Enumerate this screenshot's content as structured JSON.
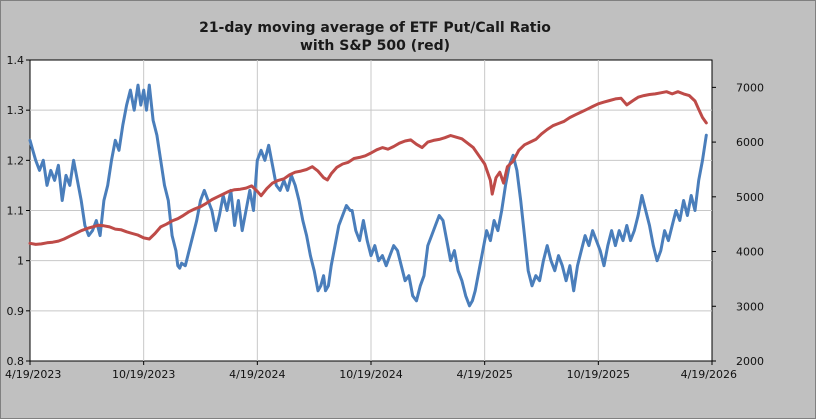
{
  "chart_data": {
    "type": "line",
    "title": "21-day moving average of ETF Put/Call Ratio",
    "subtitle": "with S&P 500 (red)",
    "xlabel": "",
    "ylabel_left": "",
    "ylabel_right": "",
    "grid": true,
    "legend": "none",
    "x_ticks": [
      "4/19/2023",
      "10/19/2023",
      "4/19/2024",
      "10/19/2024",
      "4/19/2025",
      "10/19/2025",
      "4/19/2026"
    ],
    "x_range_months": [
      0,
      36
    ],
    "y_left": {
      "range": [
        0.8,
        1.4
      ],
      "ticks": [
        0.8,
        0.9,
        1,
        1.1,
        1.2,
        1.3,
        1.4
      ],
      "tick_labels": [
        "0.8",
        "0.9",
        "1",
        "1.1",
        "1.2",
        "1.3",
        "1.4"
      ]
    },
    "y_right": {
      "range": [
        2000,
        7500
      ],
      "ticks": [
        2000,
        3000,
        4000,
        5000,
        6000,
        7000
      ],
      "tick_labels": [
        "2000",
        "3000",
        "4000",
        "5000",
        "6000",
        "7000"
      ]
    },
    "series": [
      {
        "name": "ETF Put/Call Ratio (21-day MA)",
        "axis": "left",
        "color": "#4a7ebb",
        "points": [
          [
            0.0,
            1.24
          ],
          [
            0.15,
            1.22
          ],
          [
            0.3,
            1.2
          ],
          [
            0.5,
            1.18
          ],
          [
            0.7,
            1.2
          ],
          [
            0.9,
            1.15
          ],
          [
            1.1,
            1.18
          ],
          [
            1.3,
            1.16
          ],
          [
            1.5,
            1.19
          ],
          [
            1.7,
            1.12
          ],
          [
            1.9,
            1.17
          ],
          [
            2.1,
            1.15
          ],
          [
            2.3,
            1.2
          ],
          [
            2.5,
            1.16
          ],
          [
            2.7,
            1.12
          ],
          [
            2.9,
            1.07
          ],
          [
            3.1,
            1.05
          ],
          [
            3.3,
            1.06
          ],
          [
            3.5,
            1.08
          ],
          [
            3.7,
            1.05
          ],
          [
            3.9,
            1.12
          ],
          [
            4.1,
            1.15
          ],
          [
            4.3,
            1.2
          ],
          [
            4.5,
            1.24
          ],
          [
            4.7,
            1.22
          ],
          [
            4.9,
            1.27
          ],
          [
            5.1,
            1.31
          ],
          [
            5.3,
            1.34
          ],
          [
            5.5,
            1.3
          ],
          [
            5.7,
            1.35
          ],
          [
            5.85,
            1.31
          ],
          [
            6.0,
            1.34
          ],
          [
            6.15,
            1.3
          ],
          [
            6.3,
            1.35
          ],
          [
            6.5,
            1.28
          ],
          [
            6.7,
            1.25
          ],
          [
            6.9,
            1.2
          ],
          [
            7.1,
            1.15
          ],
          [
            7.3,
            1.12
          ],
          [
            7.5,
            1.05
          ],
          [
            7.7,
            1.02
          ],
          [
            7.8,
            0.99
          ],
          [
            7.9,
            0.985
          ],
          [
            8.0,
            0.995
          ],
          [
            8.2,
            0.99
          ],
          [
            8.4,
            1.02
          ],
          [
            8.6,
            1.05
          ],
          [
            8.8,
            1.08
          ],
          [
            9.0,
            1.12
          ],
          [
            9.2,
            1.14
          ],
          [
            9.4,
            1.12
          ],
          [
            9.6,
            1.1
          ],
          [
            9.8,
            1.06
          ],
          [
            10.0,
            1.09
          ],
          [
            10.2,
            1.13
          ],
          [
            10.4,
            1.1
          ],
          [
            10.6,
            1.14
          ],
          [
            10.8,
            1.07
          ],
          [
            11.0,
            1.12
          ],
          [
            11.2,
            1.06
          ],
          [
            11.4,
            1.1
          ],
          [
            11.6,
            1.14
          ],
          [
            11.8,
            1.1
          ],
          [
            12.0,
            1.2
          ],
          [
            12.2,
            1.22
          ],
          [
            12.4,
            1.2
          ],
          [
            12.6,
            1.23
          ],
          [
            12.8,
            1.19
          ],
          [
            13.0,
            1.15
          ],
          [
            13.2,
            1.14
          ],
          [
            13.4,
            1.16
          ],
          [
            13.6,
            1.14
          ],
          [
            13.8,
            1.17
          ],
          [
            14.0,
            1.15
          ],
          [
            14.2,
            1.12
          ],
          [
            14.4,
            1.08
          ],
          [
            14.6,
            1.05
          ],
          [
            14.8,
            1.01
          ],
          [
            15.0,
            0.98
          ],
          [
            15.1,
            0.96
          ],
          [
            15.2,
            0.94
          ],
          [
            15.35,
            0.95
          ],
          [
            15.5,
            0.97
          ],
          [
            15.6,
            0.94
          ],
          [
            15.75,
            0.95
          ],
          [
            15.9,
            0.99
          ],
          [
            16.1,
            1.03
          ],
          [
            16.3,
            1.07
          ],
          [
            16.5,
            1.09
          ],
          [
            16.7,
            1.11
          ],
          [
            16.9,
            1.1
          ],
          [
            17.0,
            1.1
          ],
          [
            17.2,
            1.06
          ],
          [
            17.4,
            1.04
          ],
          [
            17.6,
            1.08
          ],
          [
            17.8,
            1.04
          ],
          [
            18.0,
            1.01
          ],
          [
            18.2,
            1.03
          ],
          [
            18.4,
            1.0
          ],
          [
            18.6,
            1.01
          ],
          [
            18.8,
            0.99
          ],
          [
            19.0,
            1.01
          ],
          [
            19.2,
            1.03
          ],
          [
            19.4,
            1.02
          ],
          [
            19.6,
            0.99
          ],
          [
            19.8,
            0.96
          ],
          [
            20.0,
            0.97
          ],
          [
            20.2,
            0.93
          ],
          [
            20.4,
            0.92
          ],
          [
            20.6,
            0.95
          ],
          [
            20.8,
            0.97
          ],
          [
            21.0,
            1.03
          ],
          [
            21.2,
            1.05
          ],
          [
            21.4,
            1.07
          ],
          [
            21.6,
            1.09
          ],
          [
            21.8,
            1.08
          ],
          [
            22.0,
            1.04
          ],
          [
            22.2,
            1.0
          ],
          [
            22.4,
            1.02
          ],
          [
            22.6,
            0.98
          ],
          [
            22.8,
            0.96
          ],
          [
            23.0,
            0.93
          ],
          [
            23.2,
            0.91
          ],
          [
            23.35,
            0.92
          ],
          [
            23.5,
            0.94
          ],
          [
            23.7,
            0.98
          ],
          [
            23.9,
            1.02
          ],
          [
            24.1,
            1.06
          ],
          [
            24.3,
            1.04
          ],
          [
            24.5,
            1.08
          ],
          [
            24.7,
            1.06
          ],
          [
            24.9,
            1.1
          ],
          [
            25.1,
            1.15
          ],
          [
            25.3,
            1.19
          ],
          [
            25.5,
            1.21
          ],
          [
            25.7,
            1.18
          ],
          [
            25.9,
            1.12
          ],
          [
            26.1,
            1.05
          ],
          [
            26.3,
            0.98
          ],
          [
            26.5,
            0.95
          ],
          [
            26.7,
            0.97
          ],
          [
            26.9,
            0.96
          ],
          [
            27.1,
            1.0
          ],
          [
            27.3,
            1.03
          ],
          [
            27.5,
            1.0
          ],
          [
            27.7,
            0.98
          ],
          [
            27.9,
            1.01
          ],
          [
            28.1,
            0.99
          ],
          [
            28.3,
            0.96
          ],
          [
            28.5,
            0.99
          ],
          [
            28.7,
            0.94
          ],
          [
            28.9,
            0.99
          ],
          [
            29.1,
            1.02
          ],
          [
            29.3,
            1.05
          ],
          [
            29.5,
            1.03
          ],
          [
            29.7,
            1.06
          ],
          [
            29.9,
            1.04
          ],
          [
            30.1,
            1.02
          ],
          [
            30.3,
            0.99
          ],
          [
            30.5,
            1.03
          ],
          [
            30.7,
            1.06
          ],
          [
            30.9,
            1.03
          ],
          [
            31.1,
            1.06
          ],
          [
            31.3,
            1.04
          ],
          [
            31.5,
            1.07
          ],
          [
            31.7,
            1.04
          ],
          [
            31.9,
            1.06
          ],
          [
            32.1,
            1.09
          ],
          [
            32.3,
            1.13
          ],
          [
            32.5,
            1.1
          ],
          [
            32.7,
            1.07
          ],
          [
            32.9,
            1.03
          ],
          [
            33.1,
            1.0
          ],
          [
            33.3,
            1.02
          ],
          [
            33.5,
            1.06
          ],
          [
            33.7,
            1.04
          ],
          [
            33.9,
            1.07
          ],
          [
            34.1,
            1.1
          ],
          [
            34.3,
            1.08
          ],
          [
            34.5,
            1.12
          ],
          [
            34.7,
            1.09
          ],
          [
            34.9,
            1.13
          ],
          [
            35.1,
            1.1
          ],
          [
            35.3,
            1.16
          ],
          [
            35.5,
            1.2
          ],
          [
            35.7,
            1.25
          ]
        ]
      },
      {
        "name": "S&P 500",
        "axis": "right",
        "color": "#be4b48",
        "points": [
          [
            0.0,
            4150
          ],
          [
            0.3,
            4130
          ],
          [
            0.6,
            4140
          ],
          [
            0.9,
            4160
          ],
          [
            1.2,
            4170
          ],
          [
            1.5,
            4190
          ],
          [
            1.8,
            4230
          ],
          [
            2.1,
            4280
          ],
          [
            2.4,
            4330
          ],
          [
            2.7,
            4380
          ],
          [
            3.0,
            4420
          ],
          [
            3.3,
            4450
          ],
          [
            3.6,
            4480
          ],
          [
            3.9,
            4470
          ],
          [
            4.2,
            4450
          ],
          [
            4.5,
            4410
          ],
          [
            4.8,
            4400
          ],
          [
            5.1,
            4360
          ],
          [
            5.4,
            4330
          ],
          [
            5.7,
            4300
          ],
          [
            6.0,
            4250
          ],
          [
            6.3,
            4230
          ],
          [
            6.6,
            4330
          ],
          [
            6.9,
            4450
          ],
          [
            7.2,
            4500
          ],
          [
            7.5,
            4560
          ],
          [
            7.8,
            4600
          ],
          [
            8.1,
            4660
          ],
          [
            8.4,
            4730
          ],
          [
            8.7,
            4780
          ],
          [
            9.0,
            4820
          ],
          [
            9.3,
            4880
          ],
          [
            9.6,
            4950
          ],
          [
            9.9,
            5000
          ],
          [
            10.2,
            5050
          ],
          [
            10.5,
            5100
          ],
          [
            10.8,
            5130
          ],
          [
            11.1,
            5140
          ],
          [
            11.4,
            5160
          ],
          [
            11.7,
            5200
          ],
          [
            12.0,
            5100
          ],
          [
            12.2,
            5020
          ],
          [
            12.5,
            5150
          ],
          [
            12.8,
            5250
          ],
          [
            13.1,
            5300
          ],
          [
            13.4,
            5330
          ],
          [
            13.7,
            5400
          ],
          [
            14.0,
            5450
          ],
          [
            14.3,
            5470
          ],
          [
            14.6,
            5500
          ],
          [
            14.9,
            5550
          ],
          [
            15.2,
            5470
          ],
          [
            15.5,
            5350
          ],
          [
            15.7,
            5310
          ],
          [
            15.9,
            5420
          ],
          [
            16.2,
            5540
          ],
          [
            16.5,
            5600
          ],
          [
            16.8,
            5630
          ],
          [
            17.1,
            5700
          ],
          [
            17.4,
            5720
          ],
          [
            17.7,
            5750
          ],
          [
            18.0,
            5800
          ],
          [
            18.3,
            5860
          ],
          [
            18.6,
            5900
          ],
          [
            18.9,
            5870
          ],
          [
            19.2,
            5920
          ],
          [
            19.5,
            5980
          ],
          [
            19.8,
            6020
          ],
          [
            20.1,
            6040
          ],
          [
            20.4,
            5960
          ],
          [
            20.7,
            5900
          ],
          [
            21.0,
            6000
          ],
          [
            21.3,
            6030
          ],
          [
            21.6,
            6050
          ],
          [
            21.9,
            6080
          ],
          [
            22.2,
            6120
          ],
          [
            22.5,
            6090
          ],
          [
            22.8,
            6060
          ],
          [
            23.1,
            5980
          ],
          [
            23.4,
            5900
          ],
          [
            23.7,
            5750
          ],
          [
            24.0,
            5600
          ],
          [
            24.3,
            5300
          ],
          [
            24.4,
            5050
          ],
          [
            24.6,
            5350
          ],
          [
            24.8,
            5450
          ],
          [
            25.0,
            5250
          ],
          [
            25.2,
            5550
          ],
          [
            25.5,
            5650
          ],
          [
            25.8,
            5850
          ],
          [
            26.1,
            5950
          ],
          [
            26.4,
            6000
          ],
          [
            26.7,
            6050
          ],
          [
            27.0,
            6150
          ],
          [
            27.3,
            6230
          ],
          [
            27.6,
            6300
          ],
          [
            27.9,
            6340
          ],
          [
            28.2,
            6380
          ],
          [
            28.5,
            6450
          ],
          [
            28.8,
            6500
          ],
          [
            29.1,
            6550
          ],
          [
            29.4,
            6600
          ],
          [
            29.7,
            6650
          ],
          [
            30.0,
            6700
          ],
          [
            30.3,
            6730
          ],
          [
            30.6,
            6760
          ],
          [
            30.9,
            6790
          ],
          [
            31.2,
            6800
          ],
          [
            31.5,
            6680
          ],
          [
            31.8,
            6750
          ],
          [
            32.1,
            6820
          ],
          [
            32.4,
            6850
          ],
          [
            32.7,
            6870
          ],
          [
            33.0,
            6880
          ],
          [
            33.3,
            6900
          ],
          [
            33.6,
            6920
          ],
          [
            33.9,
            6880
          ],
          [
            34.2,
            6920
          ],
          [
            34.5,
            6880
          ],
          [
            34.8,
            6850
          ],
          [
            35.1,
            6750
          ],
          [
            35.3,
            6600
          ],
          [
            35.5,
            6450
          ],
          [
            35.7,
            6350
          ]
        ]
      }
    ]
  }
}
